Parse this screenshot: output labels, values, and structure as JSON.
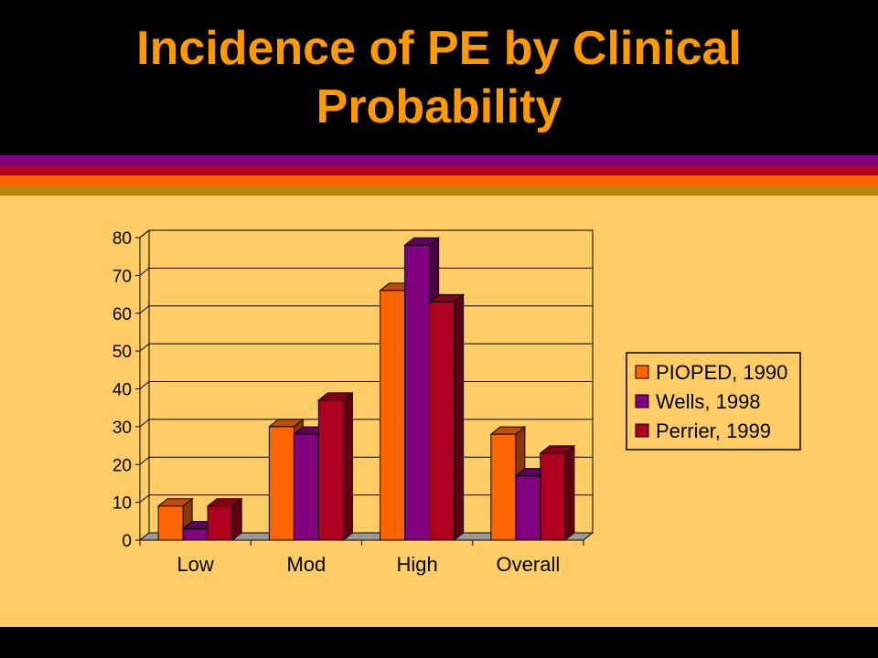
{
  "slide": {
    "title": "Incidence of PE by Clinical Probability",
    "title_color": "#FF9900",
    "content_background": "#FFCC66",
    "stripe_colors": [
      "#800080",
      "#B00020",
      "#FF6600",
      "#B8860B"
    ]
  },
  "chart_data": {
    "type": "bar",
    "style": "3d-clustered",
    "title": "",
    "xlabel": "",
    "ylabel": "",
    "categories": [
      "Low",
      "Mod",
      "High",
      "Overall"
    ],
    "ylim": [
      0,
      80
    ],
    "yticks": [
      0,
      10,
      20,
      30,
      40,
      50,
      60,
      70,
      80
    ],
    "grid": true,
    "legend_position": "right",
    "series": [
      {
        "name": "PIOPED, 1990",
        "color": "#FF6600",
        "values": [
          9,
          30,
          66,
          28
        ]
      },
      {
        "name": "Wells, 1998",
        "color": "#800080",
        "values": [
          3,
          28,
          78,
          17
        ]
      },
      {
        "name": "Perrier, 1999",
        "color": "#B00020",
        "values": [
          9,
          37,
          63,
          23
        ]
      }
    ]
  }
}
